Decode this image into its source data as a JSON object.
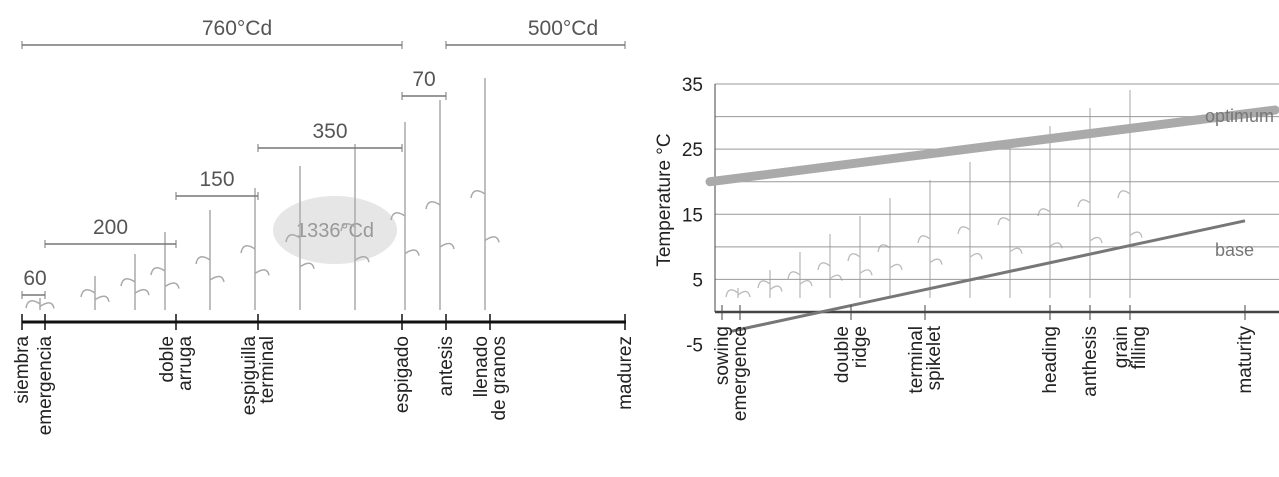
{
  "left": {
    "spans": [
      {
        "label": "760°Cd",
        "from": 0,
        "to": 4
      },
      {
        "label": "500°Cd",
        "from": 5,
        "to": 7
      },
      {
        "label": "70",
        "from": 4,
        "to": 5
      },
      {
        "label": "350",
        "from": 3,
        "to": 4
      },
      {
        "label": "150",
        "from": 2,
        "to": 3
      },
      {
        "label": "200",
        "from": 1,
        "to": 2
      },
      {
        "label": "60",
        "from": 0,
        "to": 1
      }
    ],
    "total": "1336°Cd",
    "stages": [
      [
        "siembra"
      ],
      [
        "emergencia"
      ],
      [
        "doble",
        "arruga"
      ],
      [
        "espiguilla",
        "terminal"
      ],
      [
        "espigado"
      ],
      [
        "antesis"
      ],
      [
        "llenado",
        "de granos"
      ],
      [
        "madurez"
      ]
    ]
  },
  "right": {
    "y_label": "Temperature °C",
    "ylim": [
      -5,
      35
    ],
    "yticks": [
      -5,
      5,
      15,
      25,
      35
    ],
    "optimum": {
      "label": "optimum",
      "values": [
        20,
        31
      ]
    },
    "base": {
      "label": "base",
      "values": [
        -3,
        14
      ]
    },
    "stages": [
      [
        "sowing"
      ],
      [
        "emergence"
      ],
      [
        "double",
        "ridge"
      ],
      [
        "terminal",
        "spikelet"
      ],
      [
        "heading"
      ],
      [
        "anthesis"
      ],
      [
        "grain",
        "filling"
      ],
      [
        "maturity"
      ]
    ]
  }
}
